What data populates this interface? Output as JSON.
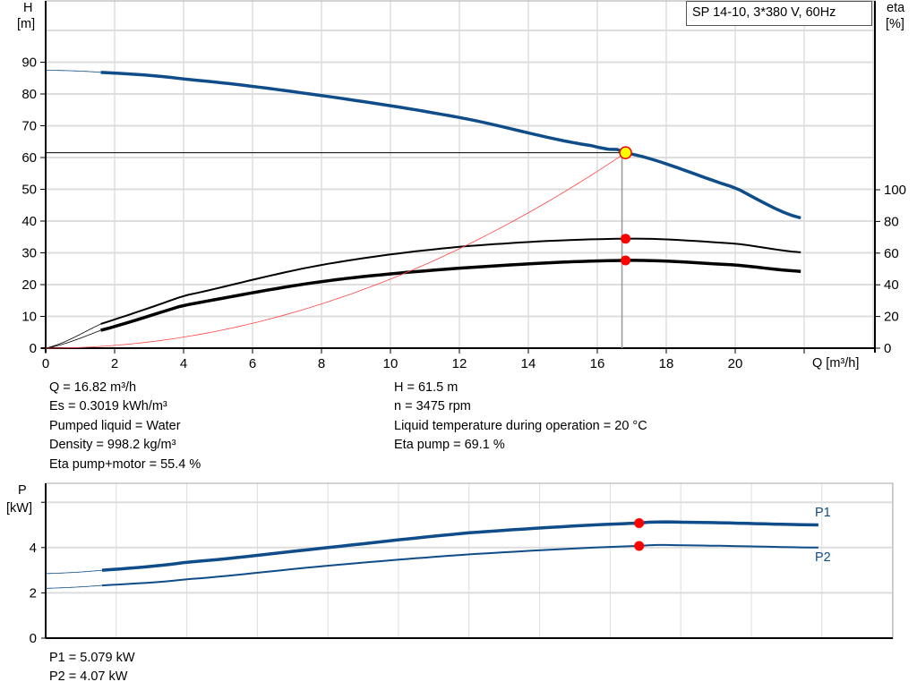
{
  "chart_data": [
    {
      "type": "line",
      "title": "SP 14-10, 3*380 V, 60Hz",
      "xlabel": "Q [m³/h]",
      "ylabel": "H",
      "ylabel_unit": "[m]",
      "y2label": "eta",
      "y2label_unit": "[%]",
      "xlim": [
        0,
        24
      ],
      "ylim": [
        0,
        110
      ],
      "y2lim": [
        0,
        100
      ],
      "x_ticks": [
        0,
        2,
        4,
        6,
        8,
        10,
        12,
        14,
        16,
        18,
        20
      ],
      "y_ticks": [
        0,
        10,
        20,
        30,
        40,
        50,
        60,
        70,
        80,
        90
      ],
      "y2_ticks": [
        0,
        20,
        40,
        60,
        80,
        100
      ],
      "grid": true,
      "series": [
        {
          "id": "H",
          "color": "#0f4c8a",
          "axis": "left",
          "x": [
            0,
            1.6,
            4,
            8,
            12,
            16,
            16.82,
            20,
            21.9
          ],
          "y": [
            87.5,
            86.8,
            84.7,
            79.5,
            72.6,
            63.5,
            61.5,
            50.5,
            41
          ],
          "thin_until": 1.6
        },
        {
          "id": "eta_pump",
          "color": "#000000",
          "axis": "right",
          "x": [
            0,
            1.6,
            4,
            8,
            12,
            16.82,
            20,
            21.9
          ],
          "y": [
            0,
            15.3,
            33,
            52.5,
            64,
            69.1,
            66,
            60.5
          ],
          "thin_until": 1.6
        },
        {
          "id": "eta_total",
          "color": "#000000",
          "axis": "right",
          "x": [
            0,
            1.6,
            4,
            8,
            12,
            16.82,
            20,
            21.9
          ],
          "y": [
            0,
            11.3,
            27,
            42,
            50.5,
            55.4,
            52.5,
            48.5
          ],
          "thin_until": 1.6
        },
        {
          "id": "system",
          "color": "#ff4444",
          "axis": "left",
          "type": "parabola",
          "x_end": 16.82,
          "y_end": 61.5
        }
      ],
      "duty_point": {
        "Q": 16.82,
        "H": 61.5,
        "eta_pump": 69.1,
        "eta_total": 55.4
      }
    },
    {
      "type": "line",
      "ylabel": "P",
      "ylabel_unit": "[kW]",
      "xlim": [
        0,
        24
      ],
      "ylim": [
        0,
        6.8
      ],
      "y_ticks": [
        0,
        2,
        4
      ],
      "grid": true,
      "series": [
        {
          "name": "P1",
          "color": "#0f4c8a",
          "x": [
            0,
            1.6,
            4,
            8,
            12,
            16.82,
            18,
            21.9
          ],
          "y": [
            2.85,
            3.0,
            3.35,
            4.0,
            4.65,
            5.079,
            5.12,
            5.0
          ],
          "thin_until": 1.6
        },
        {
          "name": "P2",
          "color": "#0f4c8a",
          "x": [
            0,
            1.6,
            4,
            8,
            12,
            16.82,
            18,
            21.9
          ],
          "y": [
            2.2,
            2.33,
            2.6,
            3.2,
            3.7,
            4.07,
            4.1,
            4.0
          ],
          "thin_until": 1.6
        }
      ],
      "duty_point": {
        "Q": 16.82,
        "P1": 5.079,
        "P2": 4.07
      }
    }
  ],
  "results": {
    "q": "Q = 16.82 m³/h",
    "es": "Es = 0.3019 kWh/m³",
    "liquid": "Pumped liquid = Water",
    "density": "Density = 998.2 kg/m³",
    "eta_total": "Eta pump+motor = 55.4 %",
    "h": "H = 61.5 m",
    "n": "n = 3475 rpm",
    "temp": "Liquid temperature during operation = 20 °C",
    "eta_pump": "Eta pump = 69.1 %",
    "p1": "P1 = 5.079 kW",
    "p2": "P2 = 4.07 kW"
  }
}
